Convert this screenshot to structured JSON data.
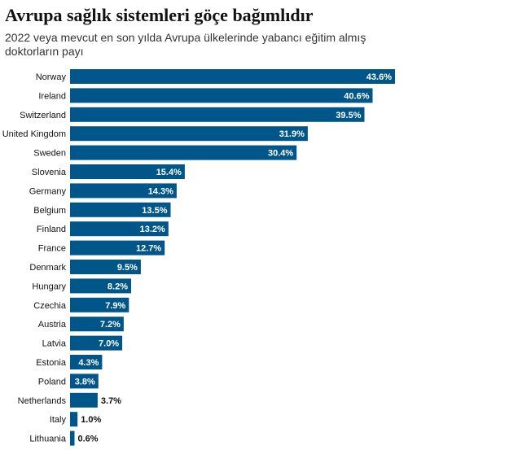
{
  "header": {
    "title": "Avrupa sağlık sistemleri göçe bağımlıdır",
    "subtitle": "2022 veya mevcut en son yılda Avrupa ülkelerinde yabancı eğitim almış doktorların payı"
  },
  "chart_data": {
    "type": "bar",
    "orientation": "horizontal",
    "title": "Avrupa sağlık sistemleri göçe bağımlıdır",
    "subtitle": "2022 veya mevcut en son yılda Avrupa ülkelerinde yabancı eğitim almış doktorların payı",
    "categories": [
      "Norway",
      "Ireland",
      "Switzerland",
      "United Kingdom",
      "Sweden",
      "Slovenia",
      "Germany",
      "Belgium",
      "Finland",
      "France",
      "Denmark",
      "Hungary",
      "Czechia",
      "Austria",
      "Latvia",
      "Estonia",
      "Poland",
      "Netherlands",
      "Italy",
      "Lithuania"
    ],
    "values": [
      43.6,
      40.6,
      39.5,
      31.9,
      30.4,
      15.4,
      14.3,
      13.5,
      13.2,
      12.7,
      9.5,
      8.2,
      7.9,
      7.2,
      7.0,
      4.3,
      3.8,
      3.7,
      1.0,
      0.6
    ],
    "labels": [
      "43.6%",
      "40.6%",
      "39.5%",
      "31.9%",
      "30.4%",
      "15.4%",
      "14.3%",
      "13.5%",
      "13.2%",
      "12.7%",
      "9.5%",
      "8.2%",
      "7.9%",
      "7.2%",
      "7.0%",
      "4.3%",
      "3.8%",
      "3.7%",
      "1.0%",
      "0.6%"
    ],
    "xlim": [
      0,
      43.6
    ],
    "grid": false,
    "legend": "none",
    "bar_color": "#005689",
    "label_color_inside": "#ffffff",
    "label_color_outside": "#121212"
  }
}
